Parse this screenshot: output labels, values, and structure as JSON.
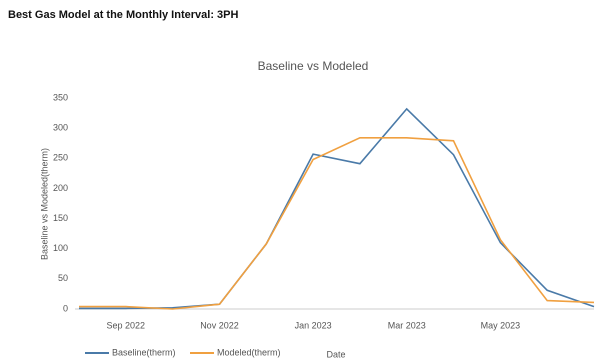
{
  "header": {
    "title": "Best Gas Model at the Monthly Interval: 3PH"
  },
  "chart_data": {
    "type": "line",
    "title": "Baseline vs Modeled",
    "x_label": "Date",
    "y_label": "Baseline vs Modeled(therm)",
    "categories": [
      null,
      "Sep 2022",
      null,
      "Nov 2022",
      null,
      "Jan 2023",
      null,
      "Mar 2023",
      null,
      "May 2023",
      null,
      null
    ],
    "series": [
      {
        "name": "Baseline(therm)",
        "color": "#4a7aa8",
        "values": [
          1,
          1,
          2,
          8,
          108,
          257,
          241,
          332,
          256,
          110,
          31,
          4
        ]
      },
      {
        "name": "Modeled(therm)",
        "color": "#f0a040",
        "values": [
          4,
          4,
          0,
          8,
          108,
          248,
          284,
          284,
          279,
          115,
          14,
          11
        ]
      }
    ],
    "ylim": [
      0,
      350
    ],
    "yticks": [
      0,
      50,
      100,
      150,
      200,
      250,
      300,
      350
    ],
    "grid": false,
    "legend": "bottom"
  }
}
